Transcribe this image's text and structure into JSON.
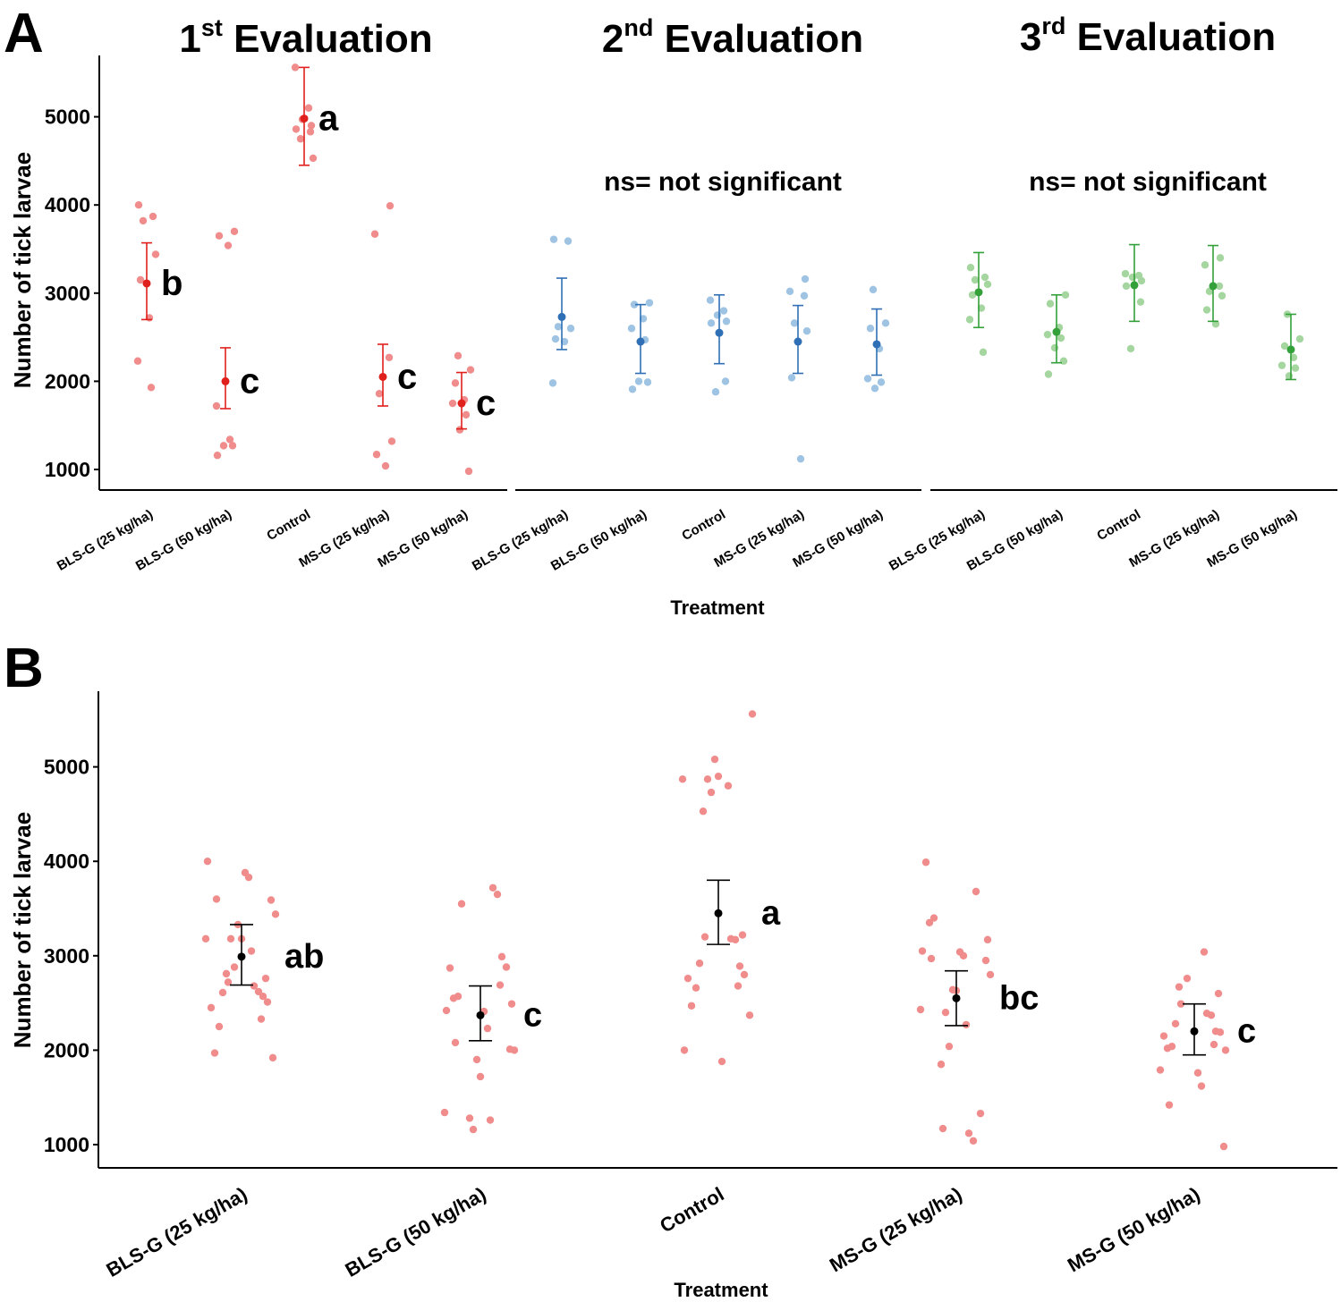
{
  "figure": {
    "panel_a_letter": "A",
    "panel_b_letter": "B"
  },
  "colors": {
    "red_point": "#f08c8c",
    "red_summary": "#e0201c",
    "blue_point": "#9ec3e3",
    "blue_summary": "#2e6fb5",
    "green_point": "#a5d6a0",
    "green_summary": "#34a03a",
    "black": "#000000"
  },
  "chart_data": [
    {
      "id": "A",
      "type": "scatter",
      "description_kind": "jittered strip plot with mean and error bars",
      "ylabel": "Number of tick larvae",
      "xlabel": "Treatment",
      "ylim": [
        800,
        5700
      ],
      "yticks": [
        1000,
        2000,
        3000,
        4000,
        5000
      ],
      "categories": [
        "BLS-G (25 kg/ha)",
        "BLS-G (50 kg/ha)",
        "Control",
        "MS-G (25 kg/ha)",
        "MS-G (50 kg/ha)"
      ],
      "facets": [
        {
          "title_main": "1",
          "title_sup": "st",
          "title_rest": " Evaluation",
          "note": "",
          "color": "red",
          "groups": [
            {
              "mean": 3110,
              "lower": 2700,
              "upper": 3570,
              "letter": "b",
              "points": [
                4000,
                3870,
                3820,
                3440,
                3150,
                2720,
                2230,
                1930
              ]
            },
            {
              "mean": 2000,
              "lower": 1690,
              "upper": 2380,
              "letter": "c",
              "points": [
                3700,
                3650,
                3540,
                1720,
                1340,
                1270,
                1270,
                1160
              ]
            },
            {
              "mean": 4980,
              "lower": 4450,
              "upper": 5560,
              "letter": "a",
              "points": [
                5560,
                5100,
                4970,
                4900,
                4860,
                4830,
                4750,
                4530
              ]
            },
            {
              "mean": 2050,
              "lower": 1720,
              "upper": 2420,
              "letter": "c",
              "points": [
                3990,
                3670,
                2270,
                1860,
                1320,
                1170,
                1040
              ]
            },
            {
              "mean": 1750,
              "lower": 1460,
              "upper": 2100,
              "letter": "c",
              "points": [
                2290,
                2130,
                1980,
                1790,
                1750,
                1620,
                1450,
                980
              ]
            }
          ]
        },
        {
          "title_main": "2",
          "title_sup": "nd",
          "title_rest": " Evaluation",
          "note": "ns= not significant",
          "color": "blue",
          "groups": [
            {
              "mean": 2730,
              "lower": 2360,
              "upper": 3170,
              "letter": "",
              "points": [
                3610,
                3590,
                2620,
                2600,
                2480,
                2450,
                1980
              ]
            },
            {
              "mean": 2450,
              "lower": 2090,
              "upper": 2870,
              "letter": "",
              "points": [
                2890,
                2870,
                2710,
                2600,
                2470,
                2000,
                1990,
                1910
              ]
            },
            {
              "mean": 2550,
              "lower": 2200,
              "upper": 2980,
              "letter": "",
              "points": [
                2920,
                2800,
                2750,
                2680,
                2660,
                2000,
                1880
              ]
            },
            {
              "mean": 2450,
              "lower": 2090,
              "upper": 2860,
              "letter": "",
              "points": [
                3160,
                3020,
                2970,
                2660,
                2570,
                2040,
                1120
              ]
            },
            {
              "mean": 2420,
              "lower": 2070,
              "upper": 2820,
              "letter": "",
              "points": [
                3040,
                2660,
                2600,
                2370,
                2030,
                1990,
                1920
              ]
            }
          ]
        },
        {
          "title_main": "3",
          "title_sup": "rd",
          "title_rest": " Evaluation",
          "note": "ns= not significant",
          "color": "green",
          "groups": [
            {
              "mean": 3010,
              "lower": 2610,
              "upper": 3460,
              "letter": "",
              "points": [
                3290,
                3180,
                3150,
                3100,
                2980,
                2830,
                2700,
                2330
              ]
            },
            {
              "mean": 2560,
              "lower": 2210,
              "upper": 2980,
              "letter": "",
              "points": [
                2980,
                2880,
                2610,
                2530,
                2490,
                2380,
                2230,
                2080
              ]
            },
            {
              "mean": 3090,
              "lower": 2680,
              "upper": 3550,
              "letter": "",
              "points": [
                3220,
                3200,
                3180,
                3140,
                3080,
                2900,
                2370
              ]
            },
            {
              "mean": 3080,
              "lower": 2680,
              "upper": 3540,
              "letter": "",
              "points": [
                3400,
                3320,
                3080,
                3020,
                2970,
                2810,
                2650
              ]
            },
            {
              "mean": 2360,
              "lower": 2020,
              "upper": 2760,
              "letter": "",
              "points": [
                2760,
                2480,
                2400,
                2270,
                2180,
                2150,
                2060
              ]
            }
          ]
        }
      ]
    },
    {
      "id": "B",
      "type": "scatter",
      "description_kind": "jittered strip plot with mean and error bars (pooled)",
      "ylabel": "Number of tick larvae",
      "xlabel": "Treatment",
      "ylim": [
        800,
        5800
      ],
      "yticks": [
        1000,
        2000,
        3000,
        4000,
        5000
      ],
      "categories": [
        "BLS-G (25 kg/ha)",
        "BLS-G (50 kg/ha)",
        "Control",
        "MS-G (25 kg/ha)",
        "MS-G (50 kg/ha)"
      ],
      "groups": [
        {
          "mean": 2990,
          "lower": 2690,
          "upper": 3330,
          "letter": "ab",
          "points": [
            4000,
            3880,
            3830,
            3600,
            3590,
            3440,
            3330,
            3180,
            3180,
            3180,
            3050,
            2880,
            2810,
            2760,
            2720,
            2680,
            2620,
            2610,
            2570,
            2510,
            2450,
            2330,
            2250,
            1970,
            1920
          ]
        },
        {
          "mean": 2370,
          "lower": 2100,
          "upper": 2680,
          "letter": "c",
          "points": [
            3720,
            3650,
            3550,
            2990,
            2880,
            2870,
            2690,
            2570,
            2550,
            2490,
            2420,
            2410,
            2230,
            2080,
            2010,
            2000,
            1900,
            1720,
            1340,
            1280,
            1260,
            1160
          ]
        },
        {
          "mean": 3450,
          "lower": 3120,
          "upper": 3800,
          "letter": "a",
          "points": [
            5560,
            5080,
            4900,
            4870,
            4870,
            4800,
            4730,
            4530,
            3220,
            3200,
            3180,
            3170,
            2920,
            2890,
            2800,
            2760,
            2680,
            2660,
            2470,
            2370,
            2000,
            1880
          ]
        },
        {
          "mean": 2550,
          "lower": 2260,
          "upper": 2840,
          "letter": "bc",
          "points": [
            3990,
            3680,
            3400,
            3350,
            3170,
            3050,
            3040,
            3000,
            2970,
            2950,
            2800,
            2640,
            2630,
            2430,
            2400,
            2270,
            2040,
            1850,
            1330,
            1170,
            1120,
            1040
          ]
        },
        {
          "mean": 2200,
          "lower": 1950,
          "upper": 2490,
          "letter": "c",
          "points": [
            3040,
            2760,
            2670,
            2600,
            2490,
            2390,
            2370,
            2280,
            2200,
            2190,
            2150,
            2060,
            2040,
            2020,
            2000,
            1790,
            1760,
            1620,
            1420,
            980
          ]
        }
      ]
    }
  ]
}
